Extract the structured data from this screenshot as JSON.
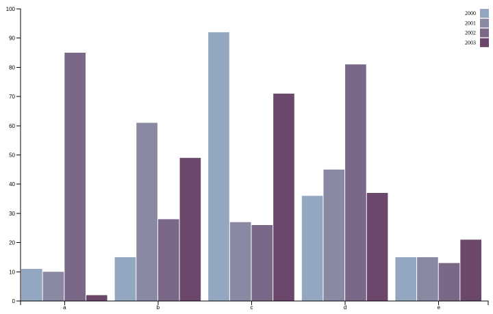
{
  "chart_data": {
    "type": "bar",
    "title": "",
    "xlabel": "",
    "ylabel": "",
    "categories": [
      "a",
      "b",
      "c",
      "d",
      "e"
    ],
    "series": [
      {
        "name": "2000",
        "color": "#94a7c0",
        "values": [
          11,
          15,
          92,
          36,
          15
        ]
      },
      {
        "name": "2001",
        "color": "#8a89a3",
        "values": [
          10,
          61,
          27,
          45,
          15
        ]
      },
      {
        "name": "2002",
        "color": "#7b6888",
        "values": [
          85,
          28,
          26,
          81,
          13
        ]
      },
      {
        "name": "2003",
        "color": "#6b486b",
        "values": [
          2,
          49,
          71,
          37,
          21
        ]
      }
    ],
    "ylim": [
      0,
      100
    ],
    "yticks": [
      0,
      10,
      20,
      30,
      40,
      50,
      60,
      70,
      80,
      90,
      100
    ],
    "grid": false,
    "legend_position": "top-right"
  }
}
